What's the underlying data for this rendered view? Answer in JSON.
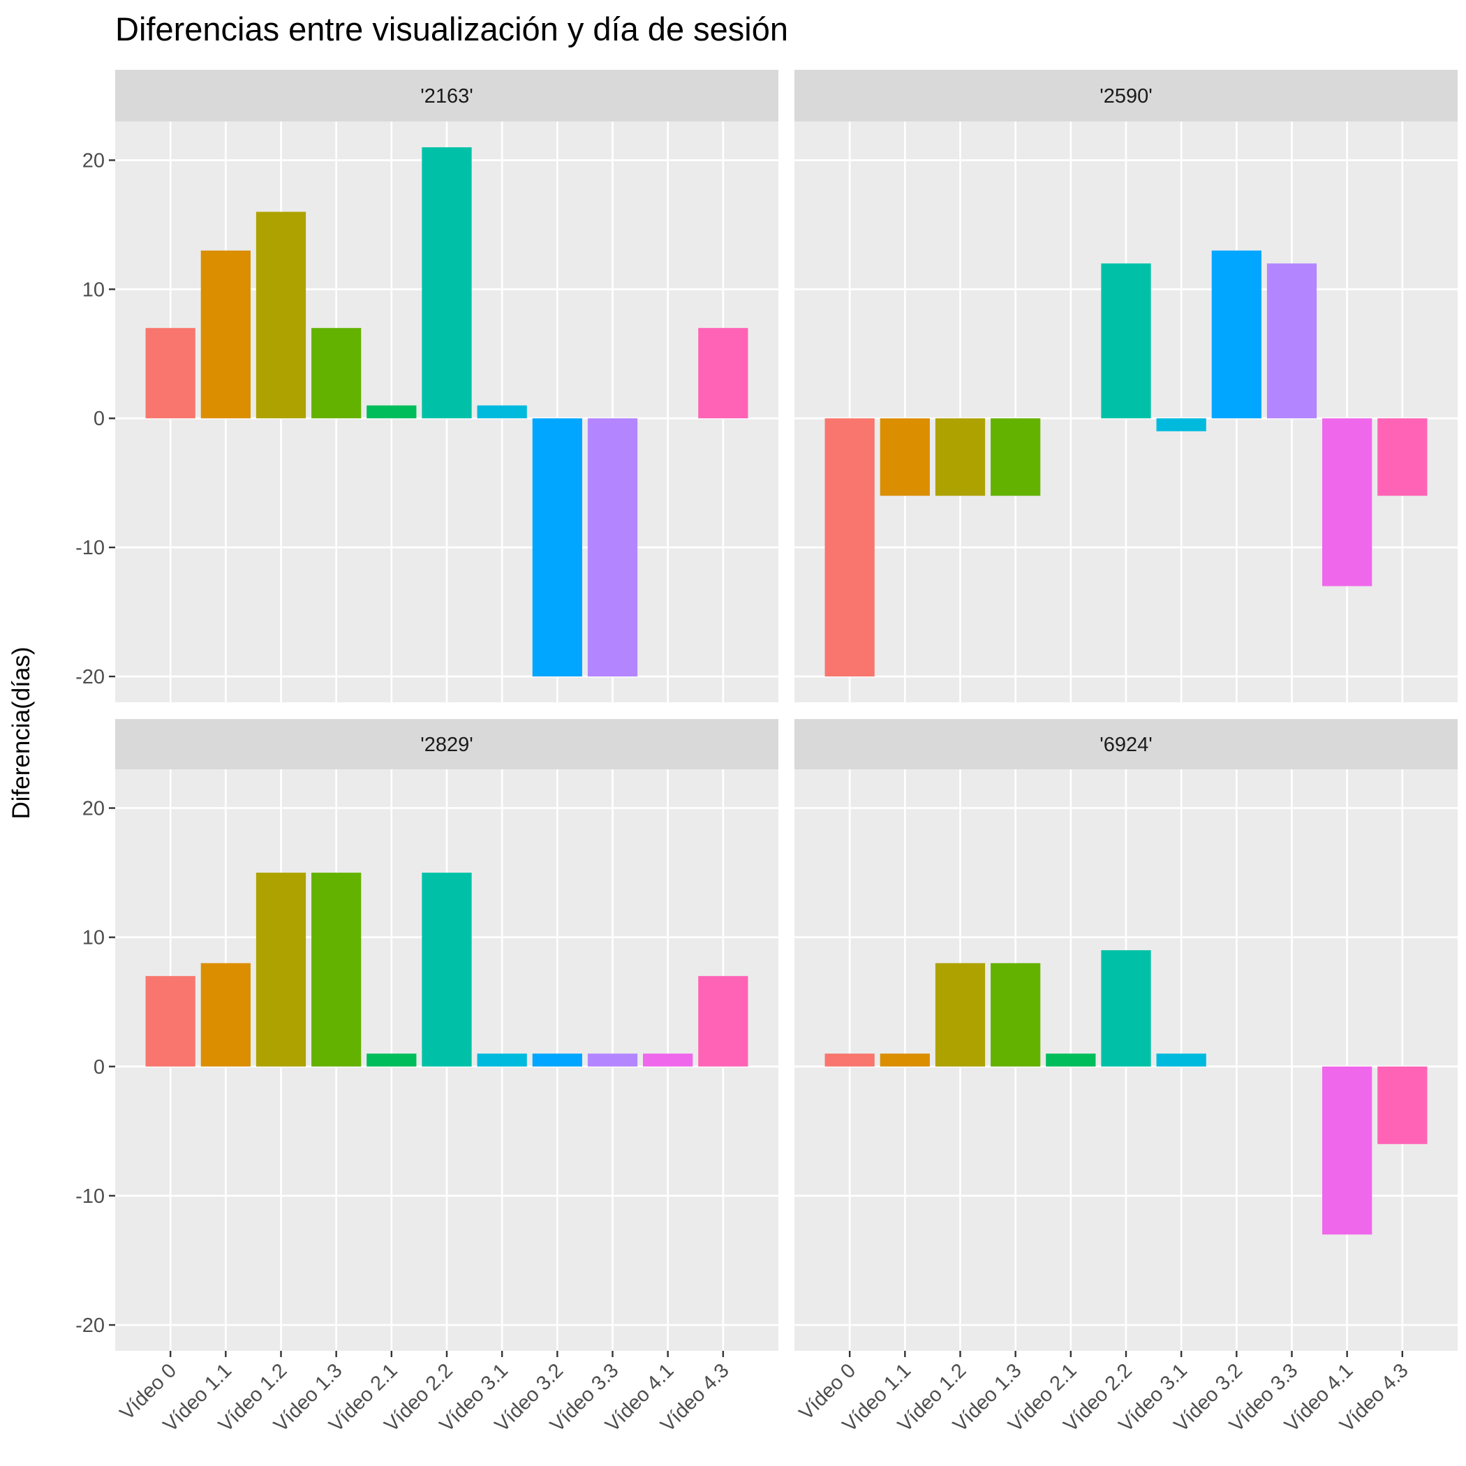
{
  "chart_data": {
    "type": "bar",
    "title": "Diferencias entre visualización y día de sesión",
    "xlabel": "",
    "ylabel": "Diferencia(días)",
    "ylim": [
      -22,
      23
    ],
    "yticks": [
      -20,
      -10,
      0,
      10,
      20
    ],
    "ytick_labels": [
      "-20",
      "-10",
      "0",
      "10",
      "20"
    ],
    "grid": true,
    "legend": "none",
    "categories": [
      "Vídeo 0",
      "Vídeo 1.1",
      "Vídeo 1.2",
      "Vídeo 1.3",
      "Vídeo 2.1",
      "Vídeo 2.2",
      "Vídeo 3.1",
      "Vídeo 3.2",
      "Vídeo 3.3",
      "Vídeo 4.1",
      "Vídeo 4.3"
    ],
    "colors": [
      "#F8766D",
      "#DB8E00",
      "#AEA200",
      "#64B200",
      "#00BD5C",
      "#00C1A7",
      "#00BADE",
      "#00A6FF",
      "#B385FF",
      "#EF67EB",
      "#FF63B6"
    ],
    "panels": [
      {
        "label": "'2163'",
        "values": [
          7,
          13,
          16,
          7,
          1,
          21,
          1,
          -20,
          -20,
          null,
          7
        ]
      },
      {
        "label": "'2590'",
        "values": [
          -20,
          -6,
          -6,
          -6,
          null,
          12,
          -1,
          13,
          12,
          -13,
          -6
        ]
      },
      {
        "label": "'2829'",
        "values": [
          7,
          8,
          15,
          15,
          1,
          15,
          1,
          1,
          1,
          1,
          7
        ]
      },
      {
        "label": "'6924'",
        "values": [
          1,
          1,
          8,
          8,
          1,
          9,
          1,
          null,
          null,
          -13,
          -6
        ]
      }
    ]
  }
}
